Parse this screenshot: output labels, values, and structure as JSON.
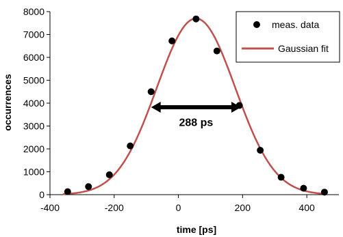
{
  "chart_data": {
    "type": "scatter",
    "xlabel": "time [ps]",
    "ylabel": "occurrences",
    "xlim": [
      -400,
      500
    ],
    "ylim": [
      0,
      8000
    ],
    "xticks": [
      -400,
      -200,
      0,
      200,
      400
    ],
    "yticks": [
      0,
      1000,
      2000,
      3000,
      4000,
      5000,
      6000,
      7000,
      8000
    ],
    "grid": false,
    "legend_position": "top-right",
    "series": [
      {
        "name": "meas. data",
        "kind": "markers",
        "color": "#000000",
        "x": [
          -345,
          -280,
          -215,
          -150,
          -85,
          -20,
          55,
          120,
          190,
          255,
          320,
          390,
          455
        ],
        "y": [
          130,
          350,
          870,
          2130,
          4500,
          6720,
          7680,
          6280,
          3900,
          1940,
          760,
          280,
          110
        ]
      },
      {
        "name": "Gaussian fit",
        "kind": "line",
        "color": "#c0504d",
        "function": "gaussian",
        "amplitude": 7700,
        "center": 55,
        "fwhm": 288,
        "x_range": [
          -360,
          460
        ]
      }
    ],
    "annotations": [
      {
        "text": "288 ps",
        "kind": "double-arrow",
        "x_from": -85,
        "x_to": 195,
        "y": 3820,
        "label_y": 3000
      }
    ]
  }
}
